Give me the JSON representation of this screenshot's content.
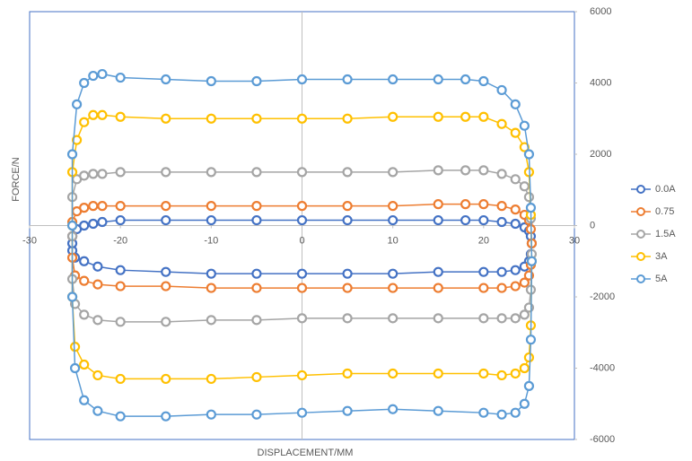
{
  "chart_data": {
    "type": "scatter-line",
    "x_label": "DISPLACEMENT/MM",
    "y_label": "FORCE/N",
    "x": [
      -25.3,
      -24.8,
      -24,
      -23,
      -22,
      -20,
      -15,
      -10,
      -5,
      0,
      5,
      10,
      15,
      18,
      20,
      22,
      23.5,
      24.5,
      25,
      25.2,
      25.3,
      25.2,
      25,
      24.5,
      23.5,
      22,
      20,
      15,
      10,
      5,
      0,
      -5,
      -10,
      -15,
      -20,
      -22.5,
      -24,
      -25,
      -25.3,
      -25.3
    ],
    "series": [
      {
        "name": "0.0A",
        "color": "#4472c4",
        "values": [
          -300,
          -100,
          0,
          50,
          100,
          150,
          150,
          150,
          150,
          150,
          150,
          150,
          150,
          150,
          150,
          100,
          50,
          -50,
          -150,
          -300,
          -500,
          -800,
          -1000,
          -1150,
          -1250,
          -1300,
          -1300,
          -1300,
          -1350,
          -1350,
          -1350,
          -1350,
          -1350,
          -1300,
          -1250,
          -1150,
          -1000,
          -900,
          -700,
          -500
        ]
      },
      {
        "name": "0.75",
        "color": "#ed7d31",
        "values": [
          100,
          400,
          500,
          550,
          550,
          550,
          550,
          550,
          550,
          550,
          550,
          550,
          600,
          600,
          600,
          550,
          450,
          300,
          150,
          -100,
          -500,
          -1100,
          -1400,
          -1600,
          -1700,
          -1750,
          -1750,
          -1750,
          -1750,
          -1750,
          -1750,
          -1750,
          -1750,
          -1700,
          -1700,
          -1650,
          -1550,
          -1400,
          -900,
          -300
        ]
      },
      {
        "name": "1.5A",
        "color": "#a5a5a5",
        "values": [
          800,
          1300,
          1400,
          1450,
          1450,
          1500,
          1500,
          1500,
          1500,
          1500,
          1500,
          1500,
          1550,
          1550,
          1550,
          1450,
          1300,
          1100,
          800,
          200,
          -800,
          -1800,
          -2300,
          -2500,
          -2600,
          -2600,
          -2600,
          -2600,
          -2600,
          -2600,
          -2600,
          -2650,
          -2650,
          -2700,
          -2700,
          -2650,
          -2500,
          -2200,
          -1500,
          -300
        ]
      },
      {
        "name": "3A",
        "color": "#ffc000",
        "values": [
          1500,
          2400,
          2900,
          3100,
          3100,
          3050,
          3000,
          3000,
          3000,
          3000,
          3000,
          3050,
          3050,
          3050,
          3050,
          2850,
          2600,
          2200,
          1500,
          300,
          -1000,
          -2800,
          -3700,
          -4000,
          -4150,
          -4200,
          -4150,
          -4150,
          -4150,
          -4150,
          -4200,
          -4250,
          -4300,
          -4300,
          -4300,
          -4200,
          -3900,
          -3400,
          -2000,
          0
        ]
      },
      {
        "name": "5A",
        "color": "#5b9bd5",
        "values": [
          2000,
          3400,
          4000,
          4200,
          4250,
          4150,
          4100,
          4050,
          4050,
          4100,
          4100,
          4100,
          4100,
          4100,
          4050,
          3800,
          3400,
          2800,
          2000,
          500,
          -1000,
          -3200,
          -4500,
          -5000,
          -5250,
          -5300,
          -5250,
          -5200,
          -5150,
          -5200,
          -5250,
          -5300,
          -5300,
          -5350,
          -5350,
          -5200,
          -4900,
          -4000,
          -2000,
          0
        ]
      }
    ],
    "xlim": [
      -30,
      30
    ],
    "xticks": [
      -30,
      -20,
      -10,
      0,
      10,
      20,
      30
    ],
    "ylim": [
      -6000,
      6000
    ],
    "yticks": [
      -6000,
      -4000,
      -2000,
      0,
      2000,
      4000,
      6000
    ],
    "legend": "right"
  }
}
